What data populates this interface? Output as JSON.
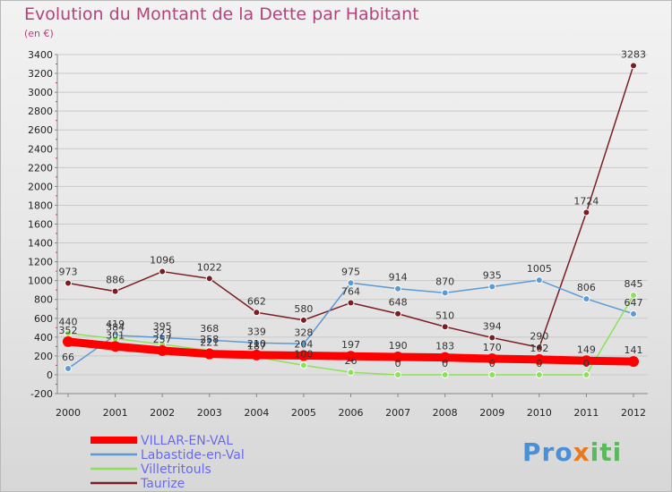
{
  "title": "Evolution du Montant de la Dette par Habitant",
  "subtitle": "(en €)",
  "logo": {
    "part1": "Pro",
    "part2": "x",
    "part3": "iti"
  },
  "chart_data": {
    "type": "line",
    "x": [
      "2000",
      "2001",
      "2002",
      "2003",
      "2004",
      "2005",
      "2006",
      "2007",
      "2008",
      "2009",
      "2010",
      "2011",
      "2012"
    ],
    "ylim": [
      -200,
      3400
    ],
    "yticks": [
      -200,
      0,
      200,
      400,
      600,
      800,
      1000,
      1200,
      1400,
      1600,
      1800,
      2000,
      2200,
      2400,
      2600,
      2800,
      3000,
      3200,
      3400
    ],
    "grid": "horizontal",
    "legend_position": "bottom-left",
    "series": [
      {
        "name": "Taurize",
        "color": "#7b1e24",
        "values": [
          973,
          886,
          1096,
          1022,
          662,
          580,
          764,
          648,
          510,
          394,
          290,
          1724,
          3283
        ],
        "labels": [
          "973",
          "886",
          "1096",
          "1022",
          "662",
          "580",
          "764",
          "648",
          "510",
          "394",
          "290",
          "1724",
          "3283"
        ]
      },
      {
        "name": "Labastide-en-Val",
        "color": "#5a9ad5",
        "values": [
          66,
          419,
          395,
          368,
          339,
          328,
          975,
          914,
          870,
          935,
          1005,
          806,
          647
        ],
        "labels": [
          "66",
          "419",
          "395",
          "368",
          "339",
          "328",
          "975",
          "914",
          "870",
          "935",
          "1005",
          "806",
          "647"
        ]
      },
      {
        "name": "Villetritouls",
        "color": "#8ee05a",
        "values": [
          440,
          384,
          323,
          258,
          187,
          100,
          26,
          0,
          0,
          0,
          0,
          0,
          845
        ],
        "labels": [
          "440",
          "384",
          "323",
          "258",
          "187",
          "100",
          "26",
          "0",
          "0",
          "0",
          "0",
          "0",
          "845"
        ]
      },
      {
        "name": "VILLAR-EN-VAL",
        "color": "#ff0000",
        "values": [
          352,
          301,
          257,
          221,
          210,
          204,
          197,
          190,
          183,
          170,
          162,
          149,
          141
        ],
        "labels": [
          "352",
          "301",
          "257",
          "221",
          "210",
          "204",
          "197",
          "190",
          "183",
          "170",
          "162",
          "149",
          "141"
        ]
      }
    ],
    "legend": [
      "VILLAR-EN-VAL",
      "Labastide-en-Val",
      "Villetritouls",
      "Taurize"
    ]
  }
}
